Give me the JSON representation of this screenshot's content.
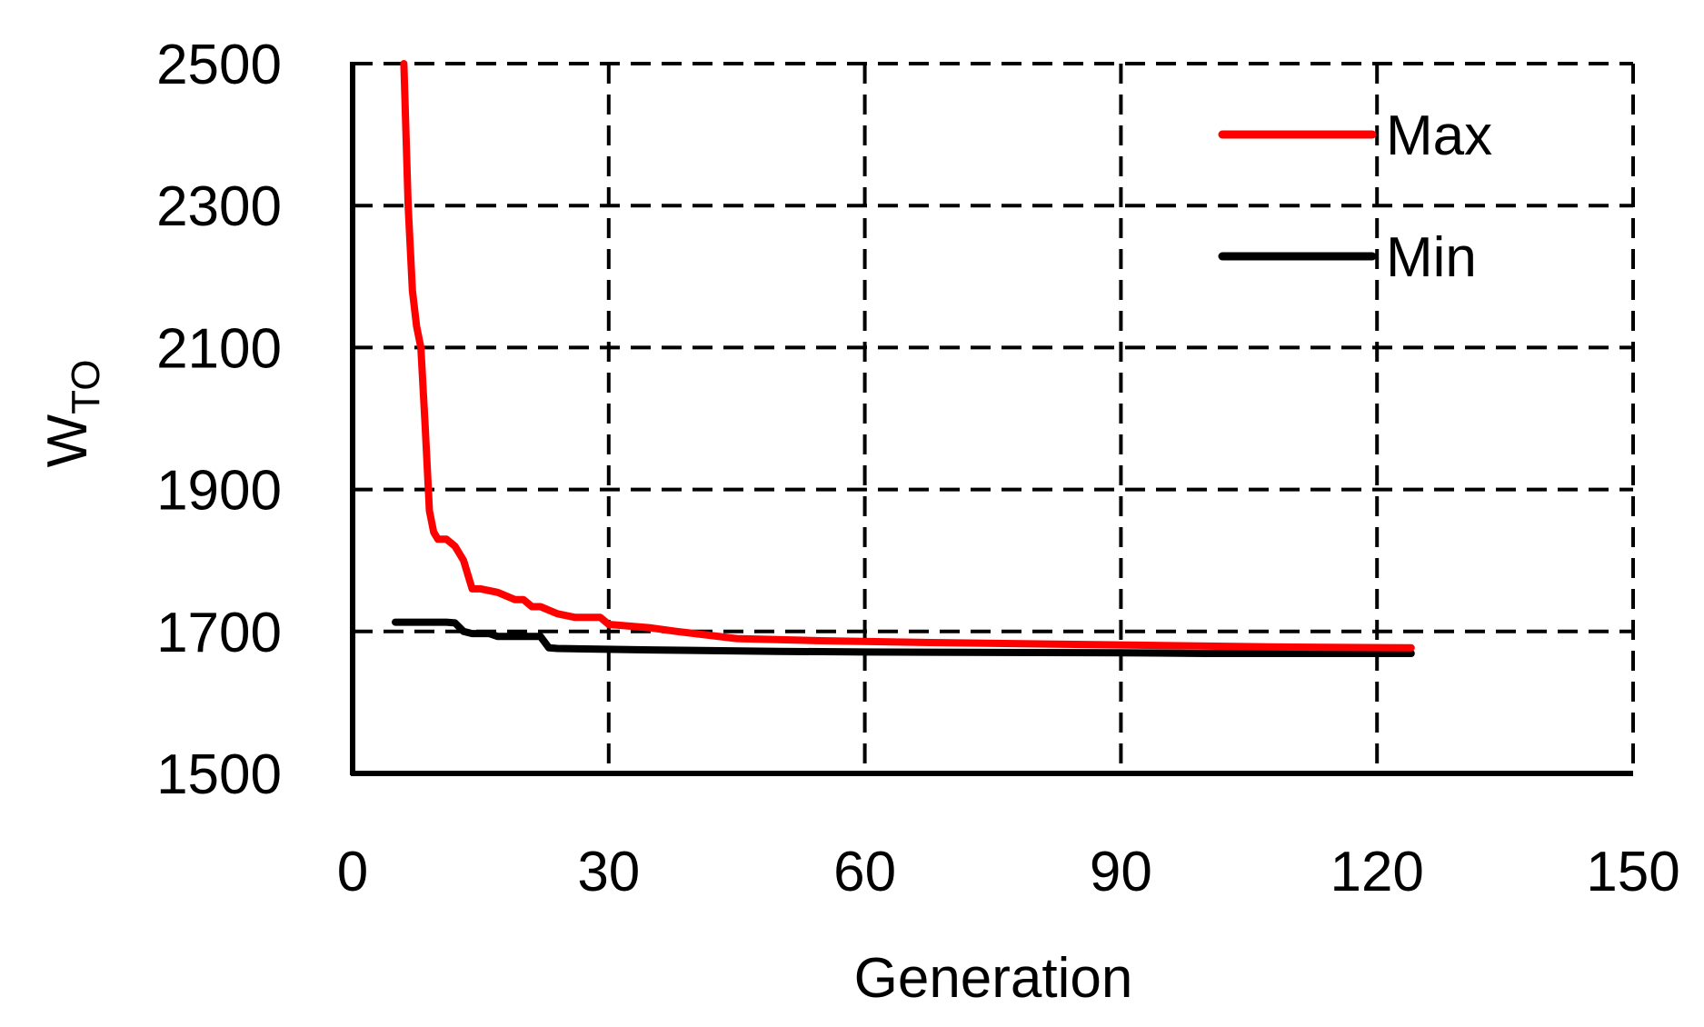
{
  "chart_data": {
    "type": "line",
    "title": "",
    "xlabel": "Generation",
    "ylabel": {
      "main": "W",
      "sub": "TO"
    },
    "xlim": [
      0,
      150
    ],
    "ylim": [
      1500,
      2500
    ],
    "xticks": [
      0,
      30,
      60,
      90,
      120,
      150
    ],
    "yticks": [
      1500,
      1700,
      1900,
      2100,
      2300,
      2500
    ],
    "grid": true,
    "legend_position": "top-right",
    "series": [
      {
        "name": "Max",
        "color": "#ff0000",
        "x": [
          6,
          6.5,
          7,
          7.5,
          8,
          8.5,
          9,
          9.5,
          10,
          11,
          12,
          13,
          14,
          15,
          17,
          19,
          20,
          21,
          22,
          24,
          26,
          29,
          30,
          35,
          38,
          45,
          55,
          70,
          90,
          110,
          124
        ],
        "y": [
          2500,
          2300,
          2180,
          2130,
          2100,
          1990,
          1870,
          1840,
          1830,
          1830,
          1820,
          1800,
          1760,
          1760,
          1755,
          1745,
          1745,
          1735,
          1735,
          1725,
          1720,
          1720,
          1710,
          1705,
          1700,
          1690,
          1687,
          1684,
          1681,
          1678,
          1677
        ]
      },
      {
        "name": "Min",
        "color": "#000000",
        "x": [
          5,
          8,
          11,
          12,
          13,
          14,
          16,
          17,
          19,
          22,
          23,
          24,
          35,
          50,
          60,
          90,
          100,
          124
        ],
        "y": [
          1713,
          1713,
          1713,
          1712,
          1700,
          1697,
          1697,
          1693,
          1693,
          1693,
          1677,
          1676,
          1674,
          1672,
          1671,
          1670,
          1669,
          1669
        ]
      }
    ]
  }
}
